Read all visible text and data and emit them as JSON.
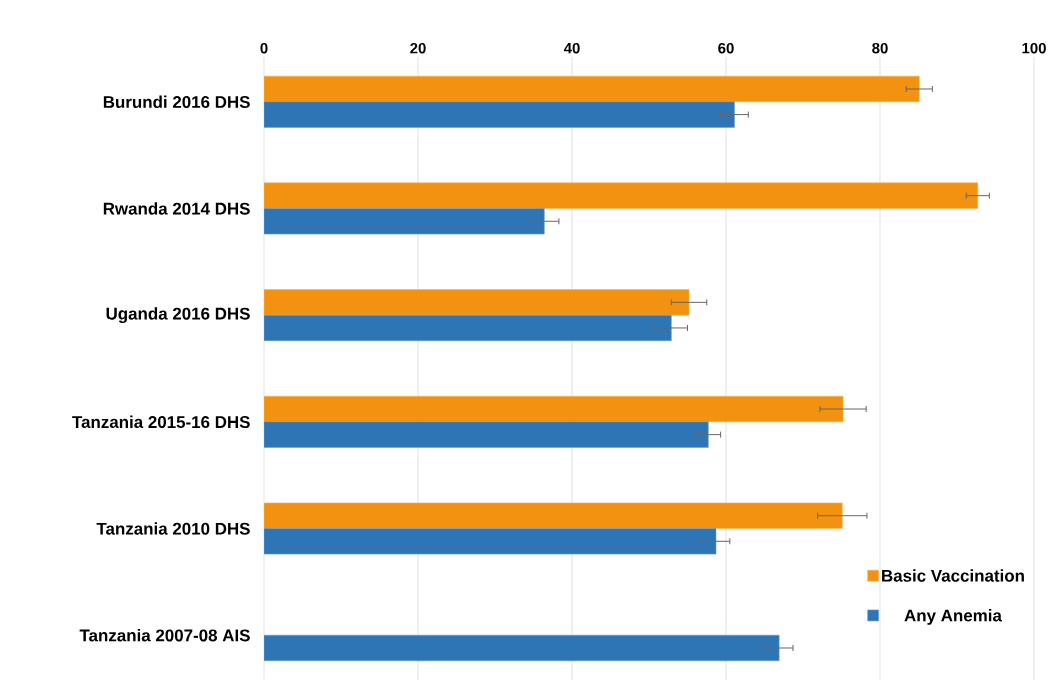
{
  "chart_data": {
    "type": "bar",
    "orientation": "horizontal",
    "categories": [
      "Burundi 2016 DHS",
      "Rwanda 2014 DHS",
      "Uganda 2016 DHS",
      "Tanzania 2015-16 DHS",
      "Tanzania 2010 DHS",
      "Tanzania 2007-08 AIS"
    ],
    "series": [
      {
        "name": "Basic Vaccination",
        "color": "#f39211",
        "values": [
          85.1,
          92.7,
          55.2,
          75.2,
          75.1,
          null
        ],
        "errors": [
          1.7,
          1.5,
          2.3,
          3.0,
          3.2,
          null
        ]
      },
      {
        "name": "Any Anemia",
        "color": "#2e75b6",
        "values": [
          61.1,
          36.4,
          52.9,
          57.7,
          58.7,
          66.9
        ],
        "errors": [
          1.8,
          1.9,
          2.1,
          1.6,
          1.8,
          1.8
        ]
      }
    ],
    "xlim": [
      0,
      100
    ],
    "xticks": [
      0,
      20,
      40,
      60,
      80,
      100
    ],
    "grid": "x",
    "legend": "bottom right"
  }
}
